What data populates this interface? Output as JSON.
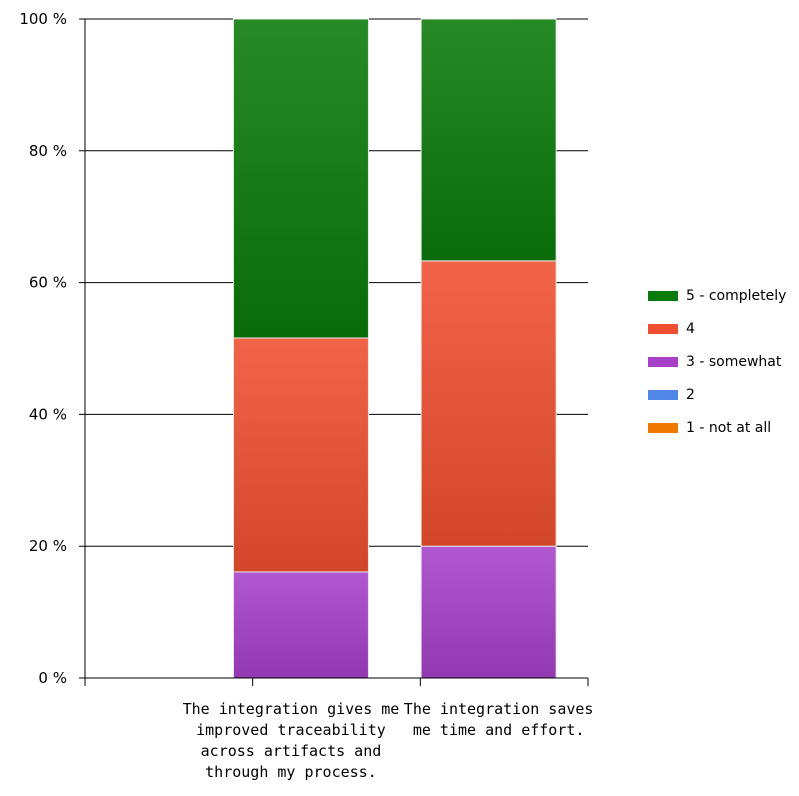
{
  "chart_data": {
    "type": "bar",
    "stacked": true,
    "categories": [
      [
        "The integration gives me",
        "improved traceability",
        "across artifacts and",
        "through my process."
      ],
      [
        "The integration saves",
        "me time and effort."
      ]
    ],
    "series": [
      {
        "name": "1 - not at all",
        "values": [
          0,
          0
        ],
        "color": "#f07800"
      },
      {
        "name": "2",
        "values": [
          0,
          0
        ],
        "color": "#4f86e8"
      },
      {
        "name": "3 - somewhat",
        "values": [
          16.1,
          20.0
        ],
        "color": "#a640c8"
      },
      {
        "name": "4",
        "values": [
          35.5,
          43.3
        ],
        "color": "#ef4f30"
      },
      {
        "name": "5 - completely",
        "values": [
          48.4,
          36.7
        ],
        "color": "#0a7a0a"
      }
    ],
    "y_ticks": [
      "0 %",
      "20 %",
      "40 %",
      "60 %",
      "80 %",
      "100 %"
    ],
    "ylim": [
      0,
      100
    ],
    "grid": true,
    "legend_position": "right",
    "title": "",
    "xlabel": "",
    "ylabel": ""
  }
}
